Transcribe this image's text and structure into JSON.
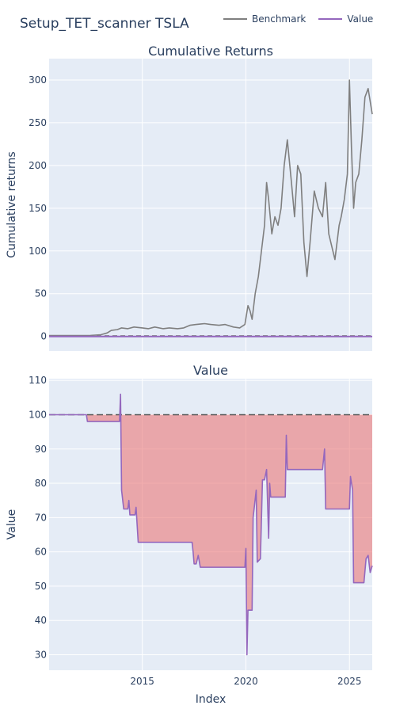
{
  "title": "Setup_TET_scanner TSLA",
  "legend": [
    {
      "name": "Benchmark",
      "color": "#7f7f7f"
    },
    {
      "name": "Value",
      "color": "#9467bd"
    }
  ],
  "chart_data": [
    {
      "type": "line",
      "title": "Cumulative Returns",
      "xlabel": "",
      "ylabel": "Cumulative returns",
      "xlim": [
        2010.5,
        2026.1
      ],
      "ylim": [
        -17,
        325
      ],
      "yticks": [
        0,
        50,
        100,
        150,
        200,
        250,
        300
      ],
      "grid": true,
      "series": [
        {
          "name": "Benchmark",
          "color": "#7f7f7f",
          "x": [
            2010.5,
            2011.0,
            2011.5,
            2012.0,
            2012.5,
            2013.0,
            2013.3,
            2013.5,
            2013.8,
            2014.0,
            2014.3,
            2014.6,
            2015.0,
            2015.3,
            2015.6,
            2016.0,
            2016.3,
            2016.7,
            2017.0,
            2017.3,
            2017.6,
            2018.0,
            2018.3,
            2018.7,
            2019.0,
            2019.4,
            2019.7,
            2019.95,
            2020.1,
            2020.2,
            2020.3,
            2020.45,
            2020.6,
            2020.75,
            2020.9,
            2021.0,
            2021.1,
            2021.25,
            2021.4,
            2021.55,
            2021.7,
            2021.85,
            2022.0,
            2022.2,
            2022.35,
            2022.5,
            2022.65,
            2022.8,
            2022.95,
            2023.1,
            2023.3,
            2023.5,
            2023.7,
            2023.85,
            2024.0,
            2024.2,
            2024.3,
            2024.5,
            2024.6,
            2024.75,
            2024.9,
            2025.0,
            2025.1,
            2025.2,
            2025.3,
            2025.45,
            2025.6,
            2025.75,
            2025.9,
            2026.1
          ],
          "values": [
            1,
            1,
            1,
            1,
            1.2,
            2,
            4,
            7,
            8,
            10,
            9,
            11,
            10,
            9,
            11,
            9,
            10,
            9,
            10,
            13,
            14,
            15,
            14,
            13,
            14,
            11,
            10,
            14,
            36,
            30,
            20,
            50,
            70,
            100,
            130,
            180,
            160,
            120,
            140,
            130,
            150,
            200,
            230,
            180,
            140,
            200,
            190,
            110,
            70,
            110,
            170,
            150,
            140,
            180,
            120,
            100,
            90,
            130,
            140,
            160,
            190,
            300,
            220,
            150,
            180,
            190,
            230,
            280,
            290,
            260
          ]
        },
        {
          "name": "Value",
          "color": "#9467bd",
          "x": [
            2010.5,
            2026.1
          ],
          "values": [
            0,
            0
          ]
        }
      ]
    },
    {
      "type": "line",
      "title": "Value",
      "xlabel": "Index",
      "ylabel": "Value",
      "xlim": [
        2010.5,
        2026.1
      ],
      "ylim": [
        25.5,
        110.5
      ],
      "xticks": [
        2015,
        2020,
        2025
      ],
      "yticks": [
        30,
        40,
        50,
        60,
        70,
        80,
        90,
        100,
        110
      ],
      "grid": true,
      "reference_line": 100,
      "series": [
        {
          "name": "Value",
          "color": "#9467bd",
          "x": [
            2010.5,
            2012.3,
            2012.35,
            2012.4,
            2013.9,
            2013.95,
            2014.0,
            2014.1,
            2014.3,
            2014.35,
            2014.4,
            2014.65,
            2014.7,
            2014.8,
            2017.4,
            2017.45,
            2017.5,
            2017.6,
            2017.7,
            2017.8,
            2019.95,
            2020.0,
            2020.05,
            2020.1,
            2020.3,
            2020.35,
            2020.5,
            2020.55,
            2020.7,
            2020.8,
            2020.9,
            2021.0,
            2021.1,
            2021.15,
            2021.2,
            2021.3,
            2021.9,
            2021.95,
            2022.0,
            2022.05,
            2023.7,
            2023.8,
            2023.85,
            2025.0,
            2025.05,
            2025.15,
            2025.2,
            2025.7,
            2025.8,
            2025.9,
            2026.0,
            2026.1
          ],
          "values": [
            100,
            100,
            98,
            98,
            98,
            106,
            78,
            72.5,
            72.5,
            75,
            70.8,
            70.8,
            73,
            62.8,
            62.8,
            60,
            56.5,
            56.5,
            59,
            55.5,
            55.5,
            61,
            30,
            43,
            43,
            70,
            78,
            57,
            58,
            81,
            81,
            84,
            64,
            80,
            76,
            76,
            76,
            94,
            84,
            84,
            84,
            90,
            72.5,
            72.5,
            82,
            78,
            51,
            51,
            58,
            59,
            54,
            56
          ]
        }
      ]
    }
  ]
}
